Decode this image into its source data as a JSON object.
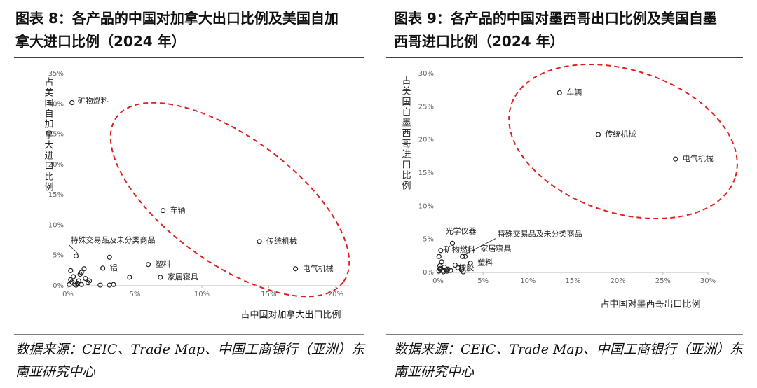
{
  "figures": [
    {
      "title": "图表 8：各产品的中国对加拿大出口比例及美国自加拿大进口比例（2024 年）",
      "source": "数据来源：CEIC、Trade Map、中国工商银行（亚洲）东南亚研究中心"
    },
    {
      "title": "图表 9：各产品的中国对墨西哥出口比例及美国自墨西哥进口比例（2024 年）",
      "source": "数据来源：CEIC、Trade Map、中国工商银行（亚洲）东南亚研究中心"
    }
  ],
  "chart_data": [
    {
      "type": "scatter",
      "xlabel": "占中国对加拿大出口比例",
      "ylabel": "占美国自加拿大进口比例",
      "color": "#222222",
      "xlim": [
        0,
        21
      ],
      "ylim": [
        0,
        35
      ],
      "xticks": [
        {
          "value": 0,
          "label": "0%"
        },
        {
          "value": 5,
          "label": "5%"
        },
        {
          "value": 10,
          "label": "10%"
        },
        {
          "value": 15,
          "label": "15%"
        },
        {
          "value": 20,
          "label": "20%"
        }
      ],
      "yticks": [
        {
          "value": 0,
          "label": "0%"
        },
        {
          "value": 5,
          "label": "5%"
        },
        {
          "value": 10,
          "label": "10%"
        },
        {
          "value": 15,
          "label": "15%"
        },
        {
          "value": 20,
          "label": "20%"
        },
        {
          "value": 25,
          "label": "25%"
        },
        {
          "value": 30,
          "label": "30%"
        },
        {
          "value": 35,
          "label": "35%"
        }
      ],
      "x": [
        0.3,
        7.1,
        0.6,
        14.3,
        17.0,
        6.0,
        6.9,
        2.6,
        0.2,
        0.2,
        0.3,
        0.5,
        0.8,
        1.0,
        1.2,
        1.3,
        1.5,
        1.6,
        1.0,
        0.6,
        3.1,
        2.4,
        3.1,
        3.4,
        4.6,
        0.1,
        0.4,
        0.7,
        0.9
      ],
      "y": [
        30.2,
        12.4,
        4.9,
        7.3,
        2.8,
        3.5,
        1.4,
        2.9,
        2.5,
        1.0,
        0.6,
        0.3,
        0.8,
        2.2,
        2.8,
        1.2,
        0.5,
        0.8,
        0.2,
        0.1,
        4.7,
        0.1,
        0.1,
        0.2,
        1.4,
        0.2,
        1.5,
        0.4,
        1.9
      ],
      "point_labels": [
        "矿物燃料",
        "车辆",
        "特殊交易品及未分类商品",
        "传统机械",
        "电气机械",
        "塑料",
        "家居寝具",
        "铝",
        null,
        null,
        null,
        null,
        null,
        null,
        null,
        null,
        null,
        null,
        null,
        null,
        null,
        null,
        null,
        null,
        null,
        null,
        null,
        null,
        null
      ]
    },
    {
      "type": "scatter",
      "xlabel": "占中国对墨西哥出口比例",
      "ylabel": "占美国自墨西哥进口比例",
      "color": "#222222",
      "xlim": [
        0,
        30
      ],
      "ylim": [
        0,
        30
      ],
      "xticks": [
        {
          "value": 0,
          "label": "0%"
        },
        {
          "value": 5,
          "label": "5%"
        },
        {
          "value": 10,
          "label": "10%"
        },
        {
          "value": 15,
          "label": "15%"
        },
        {
          "value": 20,
          "label": "20%"
        },
        {
          "value": 25,
          "label": "25%"
        },
        {
          "value": 30,
          "label": "30%"
        }
      ],
      "yticks": [
        {
          "value": 0,
          "label": "0%"
        },
        {
          "value": 5,
          "label": "5%"
        },
        {
          "value": 10,
          "label": "10%"
        },
        {
          "value": 15,
          "label": "15%"
        },
        {
          "value": 20,
          "label": "20%"
        },
        {
          "value": 25,
          "label": "25%"
        },
        {
          "value": 30,
          "label": "30%"
        }
      ],
      "x": [
        13.5,
        17.8,
        26.4,
        1.6,
        2.7,
        0.3,
        3.0,
        3.6,
        2.6,
        0.1,
        0.2,
        0.3,
        0.5,
        0.7,
        0.9,
        1.1,
        1.4,
        1.9,
        2.2,
        0.1,
        0.4,
        0.6,
        1.0,
        0.2,
        2.8
      ],
      "y": [
        27.1,
        20.8,
        17.1,
        4.4,
        2.4,
        3.3,
        2.4,
        1.4,
        0.4,
        0.2,
        1.0,
        0.6,
        0.3,
        0.8,
        0.4,
        0.5,
        0.3,
        1.1,
        0.7,
        2.4,
        1.6,
        0.1,
        0.2,
        0.5,
        0.1
      ],
      "point_labels": [
        "车辆",
        "传统机械",
        "电气机械",
        "光学仪器",
        "特殊交易品及未分类商品",
        "矿物燃料",
        "家居寝具",
        "塑料",
        "橡胶",
        null,
        null,
        null,
        null,
        null,
        null,
        null,
        null,
        null,
        null,
        null,
        null,
        null,
        null,
        null,
        null
      ]
    }
  ]
}
